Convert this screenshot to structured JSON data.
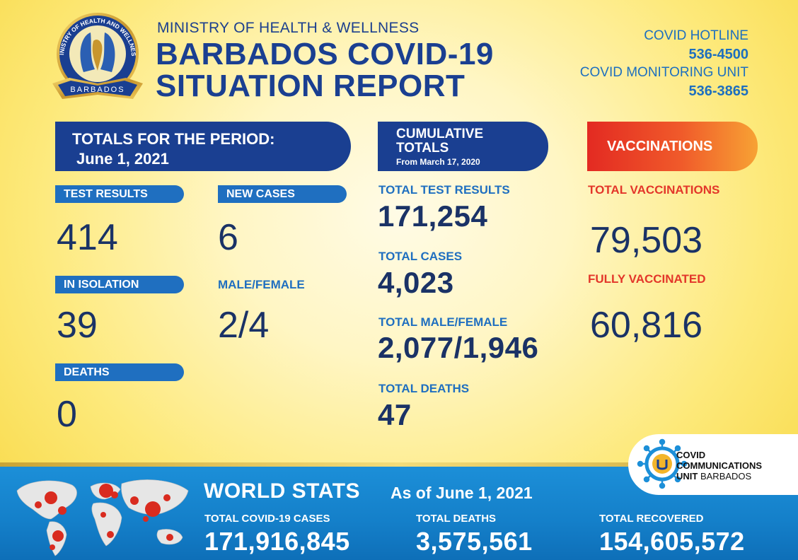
{
  "header": {
    "ministry": "MINISTRY OF HEALTH & WELLNESS",
    "title_line1": "BARBADOS COVID-19",
    "title_line2": "SITUATION REPORT",
    "seal_text_top": "MINISTRY OF HEALTH AND WELLNESS",
    "seal_text_bottom": "BARBADOS"
  },
  "contacts": {
    "hotline_label": "COVID HOTLINE",
    "hotline_number": "536-4500",
    "monitoring_label": "COVID MONITORING UNIT",
    "monitoring_number": "536-3865"
  },
  "period": {
    "heading": "TOTALS FOR THE PERIOD:",
    "date": "June 1, 2021",
    "test_results_label": "TEST RESULTS",
    "test_results": "414",
    "new_cases_label": "NEW CASES",
    "new_cases": "6",
    "isolation_label": "IN ISOLATION",
    "isolation": "39",
    "male_female_label": "MALE/FEMALE",
    "male_female": "2/4",
    "deaths_label": "DEATHS",
    "deaths": "0"
  },
  "cumulative": {
    "heading": "CUMULATIVE TOTALS",
    "since": "From March 17, 2020",
    "test_results_label": "TOTAL TEST RESULTS",
    "test_results": "171,254",
    "cases_label": "TOTAL CASES",
    "cases": "4,023",
    "male_female_label": "TOTAL MALE/FEMALE",
    "male_female": "2,077/1,946",
    "deaths_label": "TOTAL DEATHS",
    "deaths": "47"
  },
  "vaccinations": {
    "heading": "VACCINATIONS",
    "total_label": "TOTAL VACCINATIONS",
    "total": "79,503",
    "full_label": "FULLY VACCINATED",
    "full": "60,816"
  },
  "world": {
    "title": "WORLD STATS",
    "as_of": "As of June 1, 2021",
    "cases_label": "TOTAL COVID-19 CASES",
    "cases": "171,916,845",
    "deaths_label": "TOTAL DEATHS",
    "deaths": "3,575,561",
    "recovered_label": "TOTAL RECOVERED",
    "recovered": "154,605,572"
  },
  "ccu_logo": {
    "line1": "COVID",
    "line2": "COMMUNICATIONS",
    "line3_bold": "UNIT",
    "line3_light": "BARBADOS"
  },
  "colors": {
    "navy": "#1a3f91",
    "blue": "#1f6fc0",
    "red": "#e3362a",
    "number": "#1a3266",
    "background": "#fde97a"
  }
}
